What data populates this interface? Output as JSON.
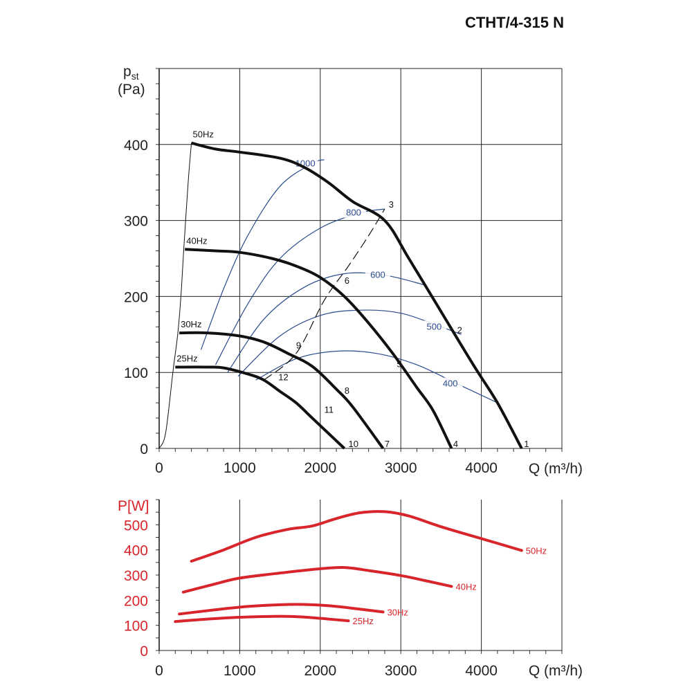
{
  "title": "CTHT/4-315 N",
  "chart_data": [
    {
      "type": "line",
      "ylabel_main": "p",
      "ylabel_sub": "st",
      "ylabel_unit": "(Pa)",
      "xlabel": "Q (m³/h)",
      "xlim": [
        0,
        5000
      ],
      "ylim": [
        0,
        500
      ],
      "xticks": [
        0,
        1000,
        2000,
        3000,
        4000
      ],
      "yticks": [
        0,
        100,
        200,
        300,
        400
      ],
      "grid": true,
      "colors": {
        "curves": "#111111",
        "iso": "#2a4a8c",
        "system": "#111111"
      },
      "series": [
        {
          "name": "50Hz",
          "points": [
            [
              400,
              402
            ],
            [
              700,
              394
            ],
            [
              1000,
              390
            ],
            [
              1500,
              382
            ],
            [
              1800,
              370
            ],
            [
              2100,
              350
            ],
            [
              2400,
              325
            ],
            [
              2800,
              300
            ],
            [
              3100,
              250
            ],
            [
              3500,
              180
            ],
            [
              3900,
              110
            ],
            [
              4200,
              60
            ],
            [
              4500,
              0
            ]
          ]
        },
        {
          "name": "40Hz",
          "points": [
            [
              320,
              262
            ],
            [
              700,
              260
            ],
            [
              1000,
              258
            ],
            [
              1400,
              250
            ],
            [
              1700,
              240
            ],
            [
              2000,
              225
            ],
            [
              2300,
              200
            ],
            [
              2600,
              165
            ],
            [
              2900,
              125
            ],
            [
              3200,
              80
            ],
            [
              3400,
              50
            ],
            [
              3630,
              0
            ]
          ]
        },
        {
          "name": "30Hz",
          "points": [
            [
              250,
              152
            ],
            [
              600,
              152
            ],
            [
              1000,
              148
            ],
            [
              1300,
              140
            ],
            [
              1600,
              125
            ],
            [
              1900,
              108
            ],
            [
              2200,
              78
            ],
            [
              2400,
              55
            ],
            [
              2780,
              0
            ]
          ]
        },
        {
          "name": "25Hz",
          "points": [
            [
              200,
              107
            ],
            [
              600,
              107
            ],
            [
              800,
              106
            ],
            [
              1100,
              98
            ],
            [
              1300,
              90
            ],
            [
              1500,
              75
            ],
            [
              1700,
              60
            ],
            [
              1900,
              40
            ],
            [
              2100,
              20
            ],
            [
              2300,
              0
            ]
          ]
        }
      ],
      "series_labels": [
        "50Hz",
        "40Hz",
        "30Hz",
        "25Hz"
      ],
      "iso_efficiency": [
        {
          "name": "1000",
          "points": [
            [
              520,
              130
            ],
            [
              800,
              210
            ],
            [
              1100,
              280
            ],
            [
              1500,
              345
            ],
            [
              1900,
              375
            ],
            [
              2050,
              380
            ]
          ]
        },
        {
          "name": "800",
          "points": [
            [
              700,
              110
            ],
            [
              1100,
              190
            ],
            [
              1500,
              250
            ],
            [
              2000,
              290
            ],
            [
              2500,
              310
            ],
            [
              2800,
              315
            ]
          ]
        },
        {
          "name": "600",
          "points": [
            [
              850,
              100
            ],
            [
              1300,
              170
            ],
            [
              1800,
              212
            ],
            [
              2300,
              230
            ],
            [
              2800,
              228
            ],
            [
              3300,
              215
            ]
          ]
        },
        {
          "name": "500",
          "points": [
            [
              980,
              95
            ],
            [
              1500,
              148
            ],
            [
              2000,
              175
            ],
            [
              2500,
              182
            ],
            [
              3000,
              178
            ],
            [
              3500,
              160
            ],
            [
              3750,
              150
            ]
          ]
        },
        {
          "name": "400",
          "points": [
            [
              1200,
              90
            ],
            [
              1700,
              118
            ],
            [
              2200,
              128
            ],
            [
              2700,
              125
            ],
            [
              3200,
              110
            ],
            [
              3700,
              85
            ],
            [
              4200,
              60
            ]
          ]
        }
      ],
      "iso_labels": [
        "1000",
        "800",
        "600",
        "500",
        "400"
      ],
      "system_curve": {
        "points": [
          [
            1300,
            90
          ],
          [
            1700,
            125
          ],
          [
            2050,
            195
          ],
          [
            2350,
            240
          ],
          [
            2600,
            280
          ],
          [
            2800,
            315
          ]
        ]
      },
      "inlet_curve": {
        "points": [
          [
            0,
            0
          ],
          [
            80,
            20
          ],
          [
            170,
            100
          ],
          [
            230,
            150
          ],
          [
            270,
            200
          ],
          [
            310,
            270
          ],
          [
            360,
            350
          ],
          [
            400,
            402
          ]
        ]
      },
      "point_labels": [
        {
          "label": "1",
          "x": 4530,
          "y": 0
        },
        {
          "label": "2",
          "x": 3700,
          "y": 150
        },
        {
          "label": "3",
          "x": 2850,
          "y": 315
        },
        {
          "label": "4",
          "x": 3650,
          "y": 0
        },
        {
          "label": "5",
          "x": 2950,
          "y": 105
        },
        {
          "label": "6",
          "x": 2300,
          "y": 215
        },
        {
          "label": "7",
          "x": 2800,
          "y": 0
        },
        {
          "label": "8",
          "x": 2300,
          "y": 70
        },
        {
          "label": "9",
          "x": 1700,
          "y": 130
        },
        {
          "label": "10",
          "x": 2350,
          "y": 0
        },
        {
          "label": "11",
          "x": 2050,
          "y": 45
        },
        {
          "label": "12",
          "x": 1480,
          "y": 88
        }
      ]
    },
    {
      "type": "line",
      "ylabel": "P[W]",
      "xlabel": "Q (m³/h)",
      "xlim": [
        0,
        5000
      ],
      "ylim": [
        0,
        600
      ],
      "xticks": [
        0,
        1000,
        2000,
        3000,
        4000
      ],
      "yticks": [
        0,
        100,
        200,
        300,
        400,
        500
      ],
      "grid": true,
      "color": "#d8242b",
      "series": [
        {
          "name": "50Hz",
          "points": [
            [
              400,
              355
            ],
            [
              800,
              400
            ],
            [
              1200,
              450
            ],
            [
              1600,
              482
            ],
            [
              1900,
              495
            ],
            [
              2200,
              525
            ],
            [
              2500,
              548
            ],
            [
              2800,
              552
            ],
            [
              3100,
              535
            ],
            [
              3500,
              492
            ],
            [
              4000,
              445
            ],
            [
              4500,
              398
            ]
          ]
        },
        {
          "name": "40Hz",
          "points": [
            [
              300,
              232
            ],
            [
              700,
              265
            ],
            [
              1000,
              288
            ],
            [
              1500,
              308
            ],
            [
              2000,
              325
            ],
            [
              2300,
              330
            ],
            [
              2600,
              318
            ],
            [
              3000,
              298
            ],
            [
              3300,
              278
            ],
            [
              3630,
              255
            ]
          ]
        },
        {
          "name": "30Hz",
          "points": [
            [
              250,
              145
            ],
            [
              700,
              162
            ],
            [
              1100,
              175
            ],
            [
              1500,
              182
            ],
            [
              1800,
              183
            ],
            [
              2100,
              178
            ],
            [
              2400,
              168
            ],
            [
              2780,
              153
            ]
          ]
        },
        {
          "name": "25Hz",
          "points": [
            [
              200,
              115
            ],
            [
              600,
              125
            ],
            [
              1000,
              132
            ],
            [
              1500,
              136
            ],
            [
              1800,
              133
            ],
            [
              2100,
              125
            ],
            [
              2350,
              118
            ]
          ]
        }
      ],
      "series_labels": [
        "50Hz",
        "40Hz",
        "30Hz",
        "25Hz"
      ]
    }
  ]
}
